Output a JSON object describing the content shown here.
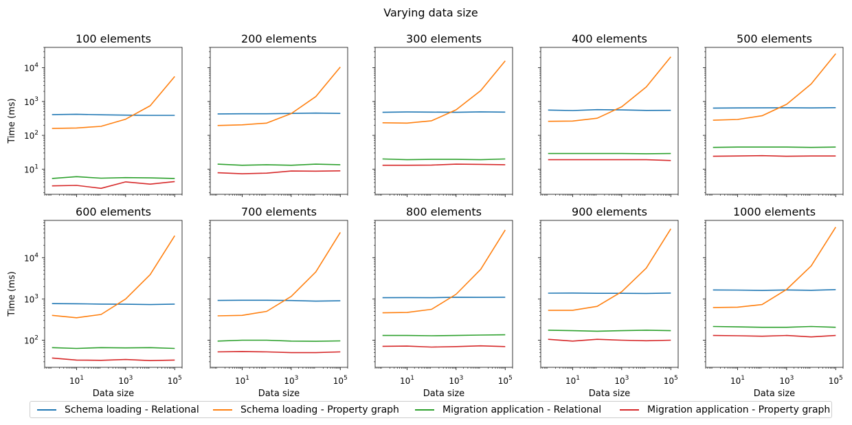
{
  "figure": {
    "title": "Varying data size"
  },
  "chart_data": {
    "type": "line",
    "title": "Varying data size",
    "xlabel": "Data size",
    "ylabel": "Time (ms)",
    "x_scale": "log",
    "y_scale": "log",
    "x": [
      1,
      10,
      100,
      1000,
      10000,
      100000
    ],
    "x_ticks": [
      10,
      1000,
      100000
    ],
    "x_tick_labels": [
      "10",
      "10",
      "10"
    ],
    "x_tick_exponents": [
      "1",
      "3",
      "5"
    ],
    "y_tick_base": "10",
    "legend_position": "bottom",
    "series_names": [
      "Schema loading - Relational",
      "Schema loading - Property graph",
      "Migration application - Relational",
      "Migration application - Property graph"
    ],
    "series_colors": [
      "#1f77b4",
      "#ff7f0e",
      "#2ca02c",
      "#d62728"
    ],
    "rows": [
      {
        "ylim": [
          1.8,
          40000
        ],
        "y_ticks": [
          10,
          100,
          1000,
          10000
        ],
        "y_tick_exponents": [
          "1",
          "2",
          "3",
          "4"
        ],
        "panels": [
          {
            "title": "100 elements",
            "series": [
              [
                410,
                420,
                405,
                395,
                390,
                390
              ],
              [
                160,
                165,
                185,
                300,
                750,
                5500
              ],
              [
                5.3,
                6.0,
                5.4,
                5.6,
                5.5,
                5.3
              ],
              [
                3.2,
                3.3,
                2.7,
                4.2,
                3.6,
                4.3
              ]
            ]
          },
          {
            "title": "200 elements",
            "series": [
              [
                430,
                435,
                435,
                445,
                455,
                445
              ],
              [
                195,
                205,
                230,
                440,
                1400,
                10500
              ],
              [
                14,
                13,
                13.5,
                13,
                14,
                13.5
              ],
              [
                7.8,
                7.3,
                7.6,
                8.8,
                8.7,
                8.9
              ]
            ]
          },
          {
            "title": "300 elements",
            "series": [
              [
                480,
                490,
                485,
                480,
                495,
                485
              ],
              [
                235,
                230,
                270,
                570,
                2100,
                16000
              ],
              [
                20,
                19,
                19.5,
                19.5,
                19,
                20
              ],
              [
                13,
                13,
                13.2,
                14,
                13.8,
                13.5
              ]
            ]
          },
          {
            "title": "400 elements",
            "series": [
              [
                560,
                540,
                575,
                565,
                545,
                550
              ],
              [
                260,
                265,
                320,
                700,
                2700,
                21000
              ],
              [
                29,
                29,
                29,
                29,
                28.5,
                29
              ],
              [
                19,
                19,
                19,
                19,
                19,
                18
              ]
            ]
          },
          {
            "title": "500 elements",
            "series": [
              [
                640,
                645,
                650,
                655,
                645,
                660
              ],
              [
                280,
                295,
                380,
                830,
                3300,
                26000
              ],
              [
                44,
                45,
                45,
                45,
                44,
                45
              ],
              [
                24,
                24.5,
                25,
                24,
                24.5,
                24.5
              ]
            ]
          }
        ]
      },
      {
        "ylim": [
          22,
          80000
        ],
        "y_ticks": [
          100,
          1000,
          10000
        ],
        "y_tick_exponents": [
          "2",
          "3",
          "4"
        ],
        "panels": [
          {
            "title": "600 elements",
            "series": [
              [
                770,
                765,
                750,
                745,
                730,
                750
              ],
              [
                400,
                350,
                420,
                1000,
                3900,
                34000
              ],
              [
                66,
                63,
                66,
                65,
                66,
                63
              ],
              [
                37,
                33,
                32.5,
                34,
                32,
                33
              ]
            ]
          },
          {
            "title": "700 elements",
            "series": [
              [
                920,
                930,
                930,
                915,
                885,
                900
              ],
              [
                390,
                400,
                500,
                1150,
                4500,
                41000
              ],
              [
                95,
                100,
                100,
                95,
                94,
                96
              ],
              [
                52,
                53,
                52,
                50,
                50,
                52
              ]
            ]
          },
          {
            "title": "800 elements",
            "series": [
              [
                1070,
                1080,
                1070,
                1100,
                1090,
                1100
              ],
              [
                460,
                470,
                560,
                1300,
                5200,
                47000
              ],
              [
                130,
                130,
                128,
                130,
                133,
                135
              ],
              [
                71,
                72,
                68,
                70,
                73,
                70
              ]
            ]
          },
          {
            "title": "900 elements",
            "series": [
              [
                1380,
                1390,
                1370,
                1370,
                1360,
                1390
              ],
              [
                530,
                530,
                660,
                1500,
                5600,
                50000
              ],
              [
                175,
                170,
                165,
                170,
                175,
                170
              ],
              [
                105,
                95,
                105,
                100,
                97,
                100
              ]
            ]
          },
          {
            "title": "1000 elements",
            "series": [
              [
                1650,
                1640,
                1610,
                1650,
                1620,
                1680
              ],
              [
                620,
                630,
                730,
                1700,
                6300,
                55000
              ],
              [
                215,
                210,
                205,
                205,
                215,
                205
              ],
              [
                130,
                128,
                125,
                130,
                120,
                130
              ]
            ]
          }
        ]
      }
    ]
  }
}
